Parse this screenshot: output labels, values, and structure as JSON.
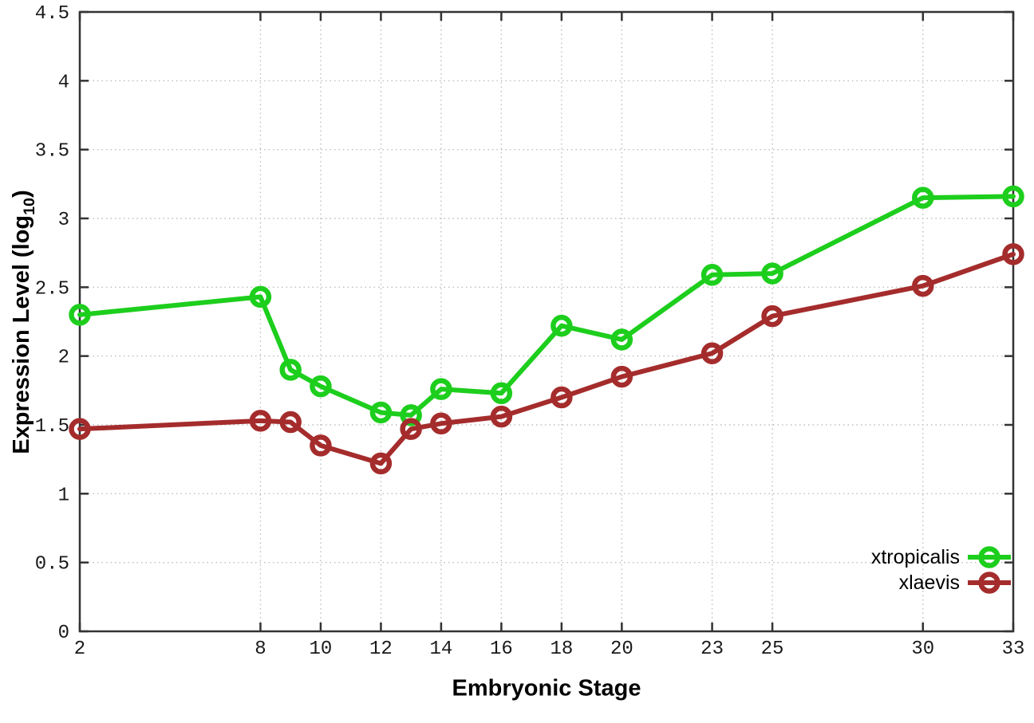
{
  "chart_data": {
    "type": "line",
    "title": "",
    "xlabel": "Embryonic Stage",
    "ylabel": "Expression Level (log10)",
    "x_range": [
      2,
      33
    ],
    "y_range": [
      0,
      4.5
    ],
    "xticks": [
      2,
      8,
      10,
      12,
      14,
      16,
      18,
      20,
      23,
      25,
      30,
      33
    ],
    "yticks": [
      0,
      0.5,
      1,
      1.5,
      2,
      2.5,
      3,
      3.5,
      4,
      4.5
    ],
    "grid": true,
    "legend_position": "bottom-right",
    "marker": "open-circle",
    "x": [
      2,
      8,
      9,
      10,
      12,
      13,
      14,
      16,
      18,
      20,
      23,
      25,
      30,
      33
    ],
    "series": [
      {
        "name": "xtropicalis",
        "color": "#1dce1d",
        "values": [
          2.3,
          2.43,
          1.9,
          1.78,
          1.59,
          1.57,
          1.76,
          1.73,
          2.22,
          2.12,
          2.59,
          2.6,
          3.15,
          3.16
        ]
      },
      {
        "name": "xlaevis",
        "color": "#a52c2c",
        "values": [
          1.47,
          1.53,
          1.52,
          1.35,
          1.22,
          1.47,
          1.51,
          1.56,
          1.7,
          1.85,
          2.02,
          2.29,
          2.51,
          2.74
        ]
      }
    ]
  },
  "labels": {
    "y_title_main": "Expression Level (log",
    "y_title_subscript": "10",
    "y_title_close": ")"
  },
  "style": {
    "axis_color": "#333333",
    "grid_color": "#bdbdbd",
    "tick_label_color": "#1a1a1a"
  }
}
